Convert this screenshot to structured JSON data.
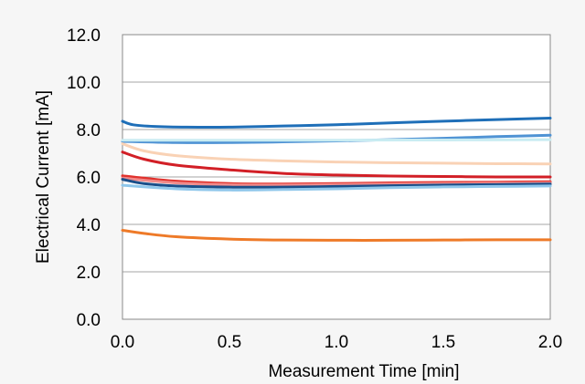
{
  "chart_data": {
    "type": "line",
    "title": "",
    "xlabel": "Measurement Time [min]",
    "ylabel": "Electrical Current [mA]",
    "xlim": [
      0.0,
      2.0
    ],
    "ylim": [
      0.0,
      12.0
    ],
    "xticks": [
      "0.0",
      "0.5",
      "1.0",
      "1.5",
      "2.0"
    ],
    "yticks": [
      "0.0",
      "2.0",
      "4.0",
      "6.0",
      "8.0",
      "10.0",
      "12.0"
    ],
    "grid": "horizontal",
    "legend": "none",
    "series": [
      {
        "color": "#1f6fb8",
        "x": [
          0,
          0.05,
          0.15,
          0.3,
          0.5,
          0.75,
          1.0,
          1.25,
          1.5,
          1.75,
          2.0
        ],
        "y": [
          8.35,
          8.2,
          8.13,
          8.1,
          8.1,
          8.15,
          8.2,
          8.28,
          8.35,
          8.42,
          8.48
        ]
      },
      {
        "color": "#4f93d4",
        "x": [
          0,
          0.25,
          0.5,
          0.75,
          1.0,
          1.25,
          1.5,
          1.75,
          2.0
        ],
        "y": [
          7.5,
          7.45,
          7.45,
          7.48,
          7.52,
          7.57,
          7.63,
          7.7,
          7.76
        ]
      },
      {
        "color": "#c9ecf2",
        "x": [
          0,
          0.5,
          1.0,
          1.5,
          2.0
        ],
        "y": [
          7.55,
          7.55,
          7.55,
          7.56,
          7.57
        ]
      },
      {
        "color": "#f9d2b5",
        "x": [
          0,
          0.1,
          0.25,
          0.5,
          0.75,
          1.0,
          1.25,
          1.5,
          1.75,
          2.0
        ],
        "y": [
          7.4,
          7.1,
          6.9,
          6.75,
          6.68,
          6.63,
          6.6,
          6.58,
          6.56,
          6.55
        ]
      },
      {
        "color": "#d21f26",
        "x": [
          0,
          0.1,
          0.25,
          0.5,
          0.75,
          1.0,
          1.25,
          1.5,
          1.75,
          2.0
        ],
        "y": [
          7.05,
          6.75,
          6.5,
          6.3,
          6.15,
          6.08,
          6.04,
          6.02,
          6.0,
          6.0
        ]
      },
      {
        "color": "#e0322d",
        "x": [
          0,
          0.1,
          0.25,
          0.5,
          0.75,
          1.0,
          1.25,
          1.5,
          1.75,
          2.0
        ],
        "y": [
          6.05,
          5.95,
          5.82,
          5.72,
          5.7,
          5.72,
          5.75,
          5.77,
          5.78,
          5.8
        ]
      },
      {
        "color": "#f08a8a",
        "x": [
          0,
          0.25,
          0.5,
          0.75,
          1.0,
          1.25,
          1.5,
          1.75,
          2.0
        ],
        "y": [
          5.95,
          5.75,
          5.67,
          5.66,
          5.68,
          5.7,
          5.72,
          5.74,
          5.75
        ]
      },
      {
        "color": "#1a4f8a",
        "x": [
          0,
          0.1,
          0.25,
          0.5,
          0.75,
          1.0,
          1.25,
          1.5,
          1.75,
          2.0
        ],
        "y": [
          5.9,
          5.72,
          5.62,
          5.57,
          5.57,
          5.6,
          5.63,
          5.66,
          5.68,
          5.7
        ]
      },
      {
        "color": "#8fc7eb",
        "x": [
          0,
          0.25,
          0.5,
          0.75,
          1.0,
          1.25,
          1.5,
          1.75,
          2.0
        ],
        "y": [
          5.65,
          5.5,
          5.45,
          5.47,
          5.5,
          5.55,
          5.58,
          5.6,
          5.62
        ]
      },
      {
        "color": "#ee7a28",
        "x": [
          0,
          0.1,
          0.25,
          0.5,
          0.75,
          1.0,
          1.25,
          1.5,
          1.75,
          2.0
        ],
        "y": [
          3.75,
          3.62,
          3.48,
          3.38,
          3.34,
          3.33,
          3.33,
          3.34,
          3.35,
          3.35
        ]
      }
    ]
  }
}
